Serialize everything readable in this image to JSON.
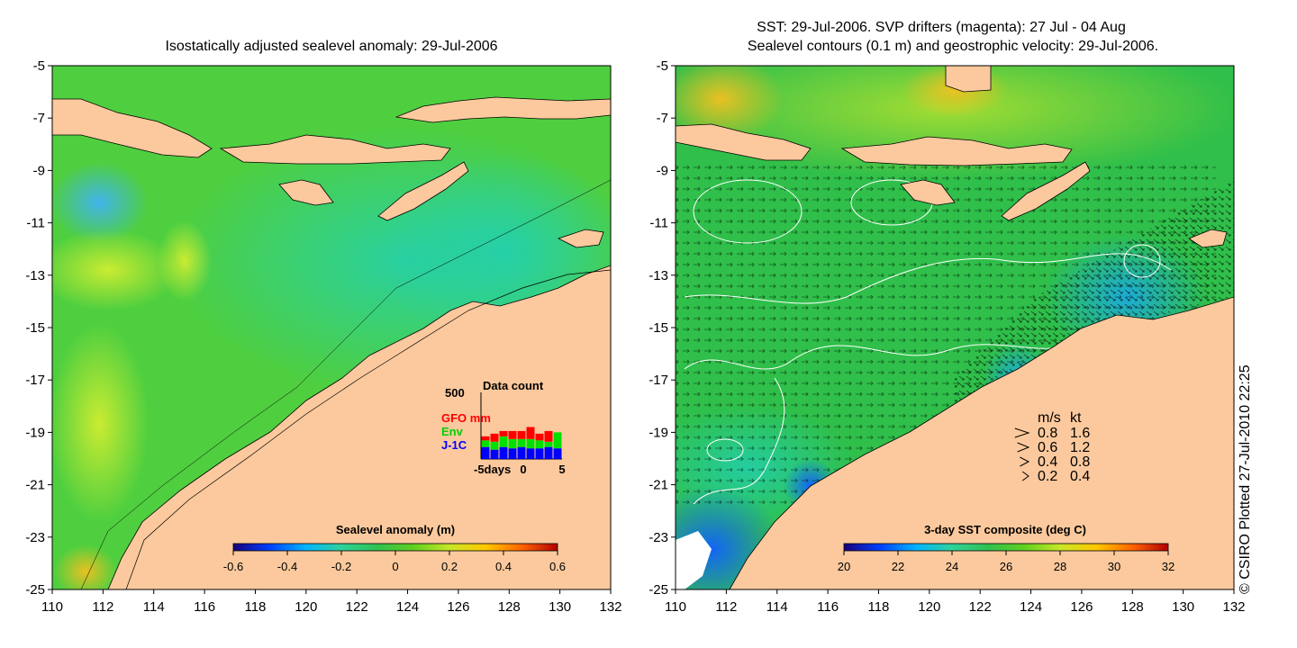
{
  "chart_data": [
    {
      "type": "heatmap",
      "title": "Isostatically adjusted sealevel anomaly: 29-Jul-2006",
      "xlim": [
        110,
        132
      ],
      "ylim": [
        -25,
        -5
      ],
      "x_ticks": [
        "110",
        "112",
        "114",
        "116",
        "118",
        "120",
        "122",
        "124",
        "126",
        "128",
        "130",
        "132"
      ],
      "y_ticks": [
        "-5",
        "-7",
        "-9",
        "-11",
        "-13",
        "-15",
        "-17",
        "-19",
        "-21",
        "-23",
        "-25"
      ],
      "colorbar": {
        "label": "Sealevel anomaly (m)",
        "range": [
          -0.6,
          0.6
        ],
        "ticks": [
          "-0.6",
          "-0.4",
          "-0.2",
          "0",
          "0.2",
          "0.4",
          "0.6"
        ],
        "colors": [
          "#1a007a",
          "#0040ff",
          "#00b4ff",
          "#30d29a",
          "#30c050",
          "#60d020",
          "#c8e628",
          "#ffc800",
          "#ff6400",
          "#b40000"
        ]
      },
      "inset": {
        "title": "Data count",
        "y_max_label": "500",
        "x_ticks": [
          "-5days",
          "0",
          "5"
        ],
        "legend": [
          {
            "name": "GFO mm",
            "color": "#ff0000"
          },
          {
            "name": "Env",
            "color": "#00e000"
          },
          {
            "name": "J-1C",
            "color": "#0000ff"
          }
        ],
        "series": [
          {
            "name": "J-1C",
            "values": [
              90,
              70,
              90,
              80,
              90,
              80,
              80,
              90,
              80
            ]
          },
          {
            "name": "Env",
            "values": [
              50,
              60,
              80,
              70,
              60,
              70,
              60,
              40,
              120
            ]
          },
          {
            "name": "GFO mm",
            "values": [
              30,
              60,
              40,
              60,
              60,
              90,
              50,
              80,
              0
            ]
          }
        ]
      }
    },
    {
      "type": "heatmap",
      "title": "SST: 29-Jul-2006. SVP drifters (magenta): 27 Jul - 04 Aug",
      "subtitle": "Sealevel contours (0.1 m) and geostrophic velocity: 29-Jul-2006.",
      "xlim": [
        110,
        132
      ],
      "ylim": [
        -25,
        -5
      ],
      "x_ticks": [
        "110",
        "112",
        "114",
        "116",
        "118",
        "120",
        "122",
        "124",
        "126",
        "128",
        "130",
        "132"
      ],
      "y_ticks": [
        "-5",
        "-7",
        "-9",
        "-11",
        "-13",
        "-15",
        "-17",
        "-19",
        "-21",
        "-23",
        "-25"
      ],
      "colorbar": {
        "label": "3-day SST composite (deg C)",
        "range": [
          20,
          32
        ],
        "ticks": [
          "20",
          "22",
          "24",
          "26",
          "28",
          "30",
          "32"
        ],
        "colors": [
          "#1a007a",
          "#0040ff",
          "#00b4ff",
          "#30d29a",
          "#30c050",
          "#60d020",
          "#c8e628",
          "#ffc800",
          "#ff6400",
          "#b40000"
        ]
      },
      "velocity_key": {
        "header_ms": "m/s",
        "header_kt": "kt",
        "rows": [
          {
            "ms": "0.8",
            "kt": "1.6"
          },
          {
            "ms": "0.6",
            "kt": "1.2"
          },
          {
            "ms": "0.4",
            "kt": "0.8"
          },
          {
            "ms": "0.2",
            "kt": "0.4"
          }
        ]
      }
    }
  ],
  "colors": {
    "land": "#fbc99d",
    "ocean_main": "#2fc04d",
    "ocean_cyan": "#2ad2a6"
  },
  "credit": "© CSIRO Plotted 27-Jul-2010 22:25"
}
